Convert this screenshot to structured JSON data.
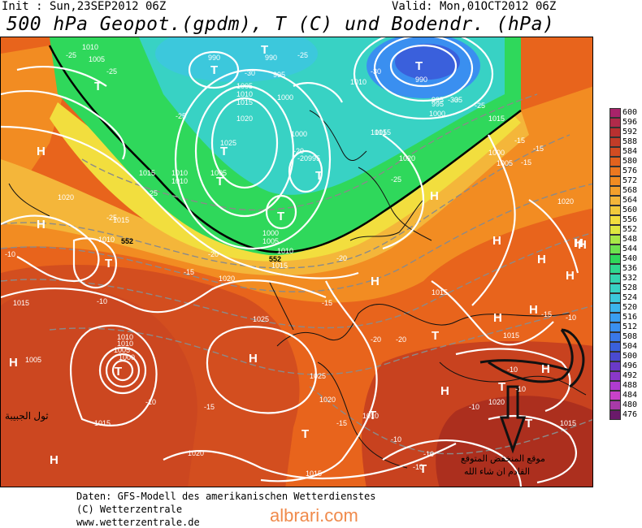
{
  "header": {
    "init": "Init : Sun,23SEP2012 06Z",
    "valid": "Valid: Mon,01OCT2012 06Z",
    "title": "500 hPa Geopot.(gpdm), T (C) und Bodendr. (hPa)"
  },
  "colors": {
    "deep_red": "#a52a1e",
    "red": "#d14a1f",
    "orange_red": "#e8641c",
    "orange": "#f28c22",
    "yellow_orange": "#f4b63a",
    "yellow": "#f2de3e",
    "green": "#2fd85b",
    "cyan": "#38d2c4",
    "blue": "#3a8ff0",
    "isobar": "#ffffff",
    "isotherm": "#808080",
    "coast": "#111111"
  },
  "scale": [
    {
      "label": "600",
      "color": "#a8236a"
    },
    {
      "label": "596",
      "color": "#b02a4a"
    },
    {
      "label": "592",
      "color": "#b83030"
    },
    {
      "label": "588",
      "color": "#c23c28"
    },
    {
      "label": "584",
      "color": "#d24c22"
    },
    {
      "label": "580",
      "color": "#e2621e"
    },
    {
      "label": "576",
      "color": "#ec7820"
    },
    {
      "label": "572",
      "color": "#f28c22"
    },
    {
      "label": "568",
      "color": "#f4a02c"
    },
    {
      "label": "564",
      "color": "#f4b63a"
    },
    {
      "label": "560",
      "color": "#f2ca3c"
    },
    {
      "label": "556",
      "color": "#f2de3e"
    },
    {
      "label": "552",
      "color": "#dfe840"
    },
    {
      "label": "548",
      "color": "#a8e848"
    },
    {
      "label": "544",
      "color": "#6ee250"
    },
    {
      "label": "540",
      "color": "#2fd85b"
    },
    {
      "label": "536",
      "color": "#2fd890"
    },
    {
      "label": "532",
      "color": "#34d4b0"
    },
    {
      "label": "528",
      "color": "#38d2c4"
    },
    {
      "label": "524",
      "color": "#3cc8dc"
    },
    {
      "label": "520",
      "color": "#3cb4ec"
    },
    {
      "label": "516",
      "color": "#3a9ef0"
    },
    {
      "label": "512",
      "color": "#3a8ff0"
    },
    {
      "label": "508",
      "color": "#3a78e8"
    },
    {
      "label": "504",
      "color": "#3a60dc"
    },
    {
      "label": "500",
      "color": "#4a4ad0"
    },
    {
      "label": "496",
      "color": "#6a3ac8"
    },
    {
      "label": "492",
      "color": "#8a38c8"
    },
    {
      "label": "488",
      "color": "#b03cd0"
    },
    {
      "label": "484",
      "color": "#c842c8"
    },
    {
      "label": "480",
      "color": "#a83aa8"
    },
    {
      "label": "476",
      "color": "#6a1a6a"
    }
  ],
  "map_labels": {
    "highs": [
      "H",
      "H",
      "H",
      "H",
      "H",
      "H",
      "H",
      "H",
      "H",
      "H",
      "H",
      "H",
      "H",
      "H",
      "H",
      "H",
      "H"
    ],
    "lows": [
      "T",
      "T",
      "T",
      "T",
      "T",
      "T",
      "T",
      "T",
      "T",
      "T",
      "T",
      "T",
      "T",
      "T",
      "T",
      "T"
    ],
    "isobar_values": [
      "1010",
      "1005",
      "990",
      "990",
      "995",
      "1010",
      "1005",
      "1010",
      "1015",
      "1015",
      "1020",
      "1025",
      "1000",
      "1000",
      "995",
      "1000",
      "1005",
      "1010",
      "1000",
      "995",
      "1005",
      "1010",
      "1015",
      "1020",
      "1020",
      "1015",
      "1015",
      "1020",
      "1025",
      "1020",
      "1015",
      "1015",
      "1020",
      "1015",
      "1010",
      "1005",
      "1000",
      "1025",
      "1015",
      "1020",
      "1015",
      "1010",
      "1020",
      "1015",
      "1015",
      "1000",
      "1005",
      "1015",
      "1010",
      "1010",
      "995",
      "990",
      "1005",
      "1010"
    ],
    "temperature_values": [
      "-25",
      "-25",
      "-25",
      "-30",
      "-25",
      "-20",
      "-25",
      "-25",
      "-30",
      "-35",
      "-15",
      "-15",
      "-25",
      "-10",
      "-15",
      "-20",
      "-15",
      "-10",
      "-15",
      "-10",
      "-20",
      "-20",
      "-20",
      "-10",
      "-15",
      "-10",
      "-10",
      "-10",
      "-10",
      "-10",
      "-10",
      "-15",
      "-15",
      "-20",
      "-25",
      "-30"
    ],
    "height_labels": [
      "552",
      "552"
    ]
  },
  "annotations": {
    "left_note": "ثول الجبيبة",
    "arrow_note_line1": "موقع المنخفض المتوقع",
    "arrow_note_line2": "القادم ان شاء الله"
  },
  "footer": {
    "line1": "Daten: GFS-Modell des amerikanischen Wetterdienstes",
    "line2": "(C) Wetterzentrale",
    "line3": "www.wetterzentrale.de",
    "brand": "albrari.com"
  }
}
